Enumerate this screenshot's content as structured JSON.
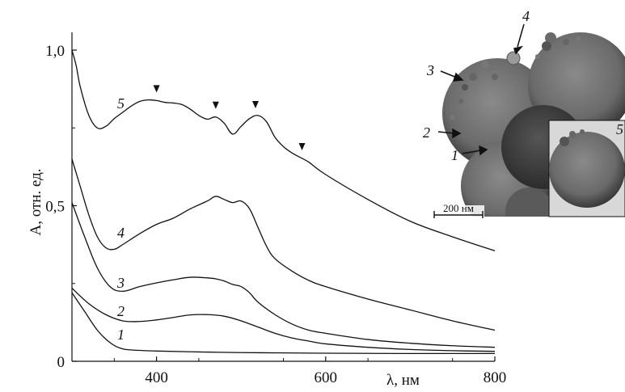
{
  "chart_data": {
    "type": "line",
    "xlabel": "λ, нм",
    "ylabel": "A, отн. ед.",
    "xlim": [
      300,
      800
    ],
    "ylim": [
      0,
      1.0
    ],
    "x_ticks": [
      400,
      600,
      800
    ],
    "x_tick_labels": [
      "400",
      "600",
      "800"
    ],
    "y_ticks": [
      0,
      0.5,
      1.0
    ],
    "y_tick_labels": [
      "0",
      "0,5",
      "1,0"
    ],
    "grid": false,
    "legend": "none",
    "series": [
      {
        "label": "1",
        "x": [
          300,
          315,
          330,
          345,
          360,
          380,
          400,
          450,
          500,
          550,
          600,
          700,
          800
        ],
        "y": [
          0.22,
          0.16,
          0.1,
          0.06,
          0.04,
          0.035,
          0.033,
          0.03,
          0.028,
          0.027,
          0.026,
          0.025,
          0.025
        ]
      },
      {
        "label": "2",
        "x": [
          300,
          320,
          340,
          360,
          380,
          400,
          420,
          440,
          460,
          480,
          500,
          520,
          540,
          560,
          580,
          600,
          650,
          700,
          750,
          800
        ],
        "y": [
          0.235,
          0.185,
          0.15,
          0.13,
          0.128,
          0.133,
          0.141,
          0.149,
          0.15,
          0.145,
          0.13,
          0.11,
          0.09,
          0.075,
          0.065,
          0.056,
          0.045,
          0.038,
          0.034,
          0.032
        ]
      },
      {
        "label": "3",
        "x": [
          300,
          315,
          330,
          345,
          360,
          380,
          400,
          420,
          440,
          460,
          470,
          480,
          490,
          500,
          510,
          520,
          540,
          560,
          580,
          600,
          650,
          700,
          750,
          800
        ],
        "y": [
          0.51,
          0.4,
          0.3,
          0.24,
          0.225,
          0.24,
          0.252,
          0.262,
          0.27,
          0.268,
          0.265,
          0.258,
          0.247,
          0.24,
          0.22,
          0.19,
          0.15,
          0.12,
          0.1,
          0.09,
          0.07,
          0.058,
          0.05,
          0.045
        ]
      },
      {
        "label": "4",
        "x": [
          300,
          310,
          320,
          330,
          340,
          350,
          360,
          380,
          400,
          420,
          440,
          460,
          470,
          480,
          490,
          500,
          510,
          520,
          530,
          540,
          560,
          580,
          600,
          650,
          700,
          750,
          800
        ],
        "y": [
          0.65,
          0.56,
          0.47,
          0.4,
          0.365,
          0.36,
          0.375,
          0.41,
          0.44,
          0.46,
          0.49,
          0.515,
          0.53,
          0.52,
          0.51,
          0.515,
          0.49,
          0.43,
          0.37,
          0.33,
          0.29,
          0.26,
          0.24,
          0.2,
          0.165,
          0.13,
          0.1
        ]
      },
      {
        "label": "5",
        "x": [
          300,
          305,
          310,
          320,
          330,
          340,
          350,
          360,
          370,
          380,
          390,
          400,
          410,
          420,
          430,
          440,
          450,
          460,
          470,
          480,
          490,
          500,
          510,
          520,
          530,
          540,
          550,
          560,
          570,
          580,
          600,
          650,
          700,
          750,
          800
        ],
        "y": [
          1.0,
          0.95,
          0.88,
          0.79,
          0.75,
          0.755,
          0.78,
          0.8,
          0.82,
          0.835,
          0.84,
          0.838,
          0.832,
          0.83,
          0.825,
          0.81,
          0.79,
          0.778,
          0.785,
          0.765,
          0.73,
          0.755,
          0.78,
          0.79,
          0.77,
          0.72,
          0.69,
          0.67,
          0.655,
          0.64,
          0.6,
          0.52,
          0.45,
          0.4,
          0.355
        ]
      }
    ],
    "peak_markers": {
      "series": "5",
      "x": [
        400,
        470,
        517,
        572
      ]
    }
  },
  "inset": {
    "labels": [
      "4",
      "3",
      "2",
      "1",
      "5"
    ],
    "scale_bar": "200 нм"
  }
}
